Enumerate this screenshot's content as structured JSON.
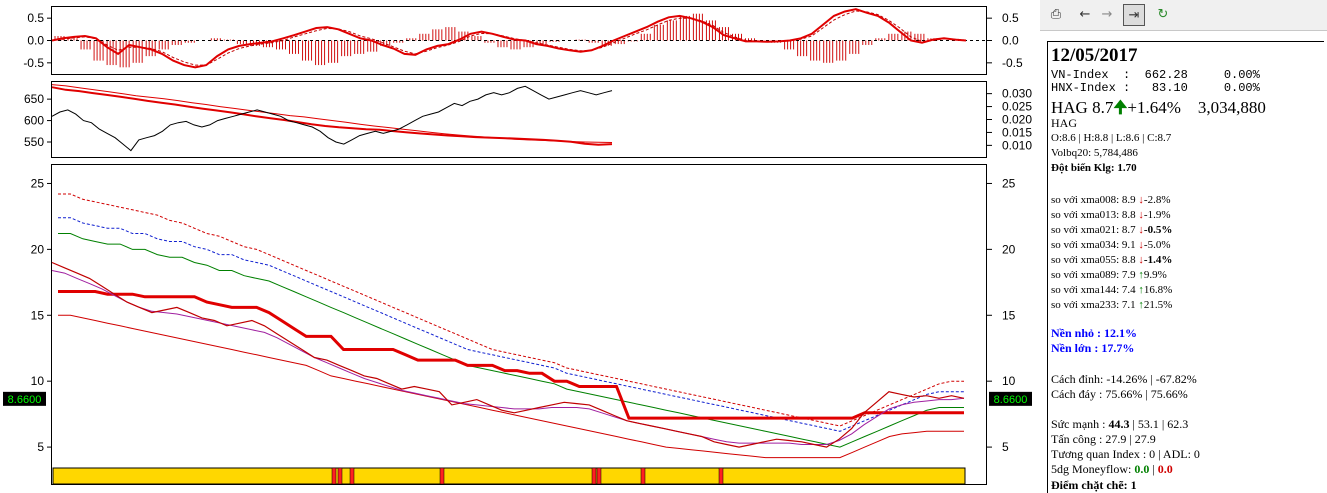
{
  "chart_data": [
    {
      "type": "bar",
      "panel": "oscillator",
      "ylim": [
        -0.75,
        0.75
      ],
      "y_ticks": [
        "0.5",
        "0.0",
        "-0.5"
      ],
      "baseline": 0.0,
      "series": [
        {
          "values": [
            0.1,
            0.05,
            -0.2,
            -0.45,
            -0.55,
            -0.6,
            -0.5,
            -0.35,
            -0.2,
            -0.1,
            -0.05,
            0.0,
            0.05,
            0.02,
            -0.08,
            -0.12,
            -0.15,
            -0.2,
            -0.3,
            -0.45,
            -0.55,
            -0.5,
            -0.35,
            -0.3,
            -0.25,
            -0.12,
            -0.05,
            0.05,
            0.15,
            0.25,
            0.3,
            0.2,
            0.1,
            -0.05,
            -0.15,
            -0.2,
            -0.15,
            -0.08,
            -0.03,
            0.0,
            0.02,
            -0.05,
            -0.12,
            -0.08,
            -0.02,
            0.15,
            0.35,
            0.45,
            0.55,
            0.6,
            0.45,
            0.3,
            0.15,
            0.05,
            0.0,
            -0.05,
            -0.2,
            -0.35,
            -0.45,
            -0.5,
            -0.45,
            -0.3,
            -0.1,
            0.05,
            0.15,
            0.2,
            0.15,
            0.05,
            0.0,
            0.02
          ]
        },
        {
          "values": [
            0.0,
            0.05,
            0.08,
            0.1,
            0.05,
            -0.15,
            -0.3,
            -0.1,
            -0.15,
            -0.2,
            -0.3,
            -0.45,
            -0.55,
            -0.6,
            -0.55,
            -0.35,
            -0.2,
            -0.12,
            -0.08,
            -0.05,
            -0.02,
            0.05,
            0.12,
            0.2,
            0.28,
            0.3,
            0.25,
            0.15,
            0.05,
            0.0,
            -0.1,
            -0.18,
            -0.3,
            -0.32,
            -0.2,
            -0.12,
            -0.08,
            0.02,
            0.15,
            0.2,
            0.15,
            0.08,
            0.02,
            0.0,
            -0.08,
            -0.12,
            -0.18,
            -0.22,
            -0.25,
            -0.22,
            -0.12,
            0.0,
            0.1,
            0.2,
            0.3,
            0.42,
            0.52,
            0.55,
            0.5,
            0.42,
            0.3,
            0.12,
            0.05,
            -0.02,
            -0.02,
            -0.03,
            -0.02,
            0.0,
            0.05,
            0.15,
            0.35,
            0.55,
            0.65,
            0.7,
            0.62,
            0.55,
            0.4,
            0.2,
            0.0,
            -0.05,
            0.02,
            0.05,
            0.02,
            0.0
          ]
        },
        {
          "values": [
            0.0,
            0.03,
            0.06,
            0.08,
            0.04,
            -0.1,
            -0.22,
            -0.15,
            -0.15,
            -0.18,
            -0.25,
            -0.38,
            -0.48,
            -0.55,
            -0.55,
            -0.42,
            -0.28,
            -0.18,
            -0.12,
            -0.08,
            -0.05,
            0.0,
            0.08,
            0.15,
            0.22,
            0.27,
            0.26,
            0.2,
            0.1,
            0.04,
            -0.05,
            -0.14,
            -0.24,
            -0.3,
            -0.24,
            -0.16,
            -0.1,
            -0.02,
            0.1,
            0.16,
            0.15,
            0.1,
            0.04,
            0.0,
            -0.05,
            -0.1,
            -0.15,
            -0.2,
            -0.23,
            -0.22,
            -0.15,
            -0.05,
            0.05,
            0.15,
            0.24,
            0.35,
            0.45,
            0.5,
            0.5,
            0.44,
            0.34,
            0.18,
            0.08,
            0.0,
            -0.02,
            -0.03,
            -0.02,
            -0.01,
            0.03,
            0.1,
            0.28,
            0.46,
            0.58,
            0.66,
            0.64,
            0.58,
            0.45,
            0.28,
            0.08,
            -0.02,
            0.0,
            0.04,
            0.03,
            0.01
          ]
        }
      ]
    },
    {
      "type": "line",
      "panel": "index-comparison",
      "y_ticks_left": [
        "650",
        "600",
        "550"
      ],
      "ylim_left": [
        515,
        690
      ],
      "y_ticks_right": [
        "0.030",
        "0.025",
        "0.020",
        "0.015",
        "0.010"
      ],
      "ylim_right": [
        0.0055,
        0.0345
      ],
      "series": [
        {
          "axis": "left",
          "values": [
            610,
            620,
            625,
            615,
            600,
            595,
            580,
            570,
            560,
            545,
            530,
            555,
            560,
            565,
            575,
            590,
            595,
            598,
            590,
            585,
            590,
            600,
            605,
            610,
            615,
            620,
            625,
            620,
            615,
            610,
            600,
            595,
            590,
            585,
            575,
            560,
            550,
            545,
            555,
            565,
            570,
            575,
            570,
            575,
            580,
            590,
            600,
            610,
            615,
            620,
            630,
            640,
            635,
            645,
            650,
            660,
            665,
            660,
            665,
            675,
            680,
            670,
            660,
            650,
            655,
            660,
            665,
            670,
            665,
            660,
            665,
            670
          ]
        },
        {
          "axis": "right",
          "values": [
            0.0325,
            0.0315,
            0.031,
            0.0302,
            0.0295,
            0.0288,
            0.028,
            0.0272,
            0.0265,
            0.0258,
            0.025,
            0.0242,
            0.0235,
            0.0228,
            0.022,
            0.0212,
            0.0205,
            0.0198,
            0.019,
            0.0182,
            0.0175,
            0.017,
            0.0166,
            0.0162,
            0.016,
            0.0155,
            0.015,
            0.0146,
            0.0142,
            0.0138,
            0.0135,
            0.0132,
            0.013,
            0.0128,
            0.0126,
            0.0124,
            0.0121,
            0.0118,
            0.0114,
            0.0106,
            0.0102,
            0.0105
          ]
        },
        {
          "axis": "right",
          "values": [
            0.0335,
            0.033,
            0.0322,
            0.0315,
            0.0308,
            0.03,
            0.0292,
            0.0286,
            0.028,
            0.0273,
            0.0265,
            0.0258,
            0.025,
            0.0243,
            0.0236,
            0.0229,
            0.0222,
            0.0215,
            0.021,
            0.0203,
            0.0196,
            0.0189,
            0.0182,
            0.0175,
            0.0169,
            0.0163,
            0.0157,
            0.0151,
            0.0145,
            0.014,
            0.0136,
            0.0132,
            0.0128,
            0.0124,
            0.0121,
            0.0119,
            0.0117,
            0.0115,
            0.0113,
            0.0112,
            0.0111
          ]
        }
      ]
    },
    {
      "type": "line",
      "panel": "price",
      "y_ticks": [
        "25",
        "20",
        "15",
        "10",
        "5"
      ],
      "ylim": [
        2.2,
        26.4
      ],
      "last_price_label": "8.6600",
      "last_price": 8.66,
      "series": [
        {
          "values": [
            19.0,
            18.6,
            18.2,
            17.8,
            17.2,
            16.6,
            16.0,
            15.6,
            15.2,
            15.4,
            15.6,
            15.2,
            14.8,
            14.6,
            14.2,
            14.4,
            14.6,
            14.2,
            13.6,
            13.0,
            12.4,
            11.8,
            11.6,
            11.2,
            10.8,
            10.4,
            10.2,
            9.8,
            9.4,
            9.6,
            9.4,
            9.2,
            8.2,
            8.4,
            8.6,
            8.2,
            7.8,
            7.6,
            7.8,
            8.0,
            8.2,
            8.4,
            8.3,
            8.2,
            7.8,
            7.4,
            7.0,
            6.8,
            6.6,
            6.4,
            6.2,
            6.0,
            5.8,
            5.4,
            5.2,
            5.0,
            5.2,
            5.4,
            5.6,
            5.5,
            5.4,
            5.2,
            5.0,
            5.6,
            6.4,
            7.6,
            8.4,
            9.2,
            9.0,
            8.8,
            8.9,
            8.7,
            8.9,
            8.7
          ]
        },
        {
          "values": [
            18.4,
            18.2,
            17.8,
            17.4,
            17.0,
            16.5,
            16.0,
            15.6,
            15.3,
            15.2,
            15.1,
            14.9,
            14.7,
            14.5,
            14.3,
            14.1,
            13.9,
            13.7,
            13.3,
            12.8,
            12.3,
            11.8,
            11.4,
            11.0,
            10.6,
            10.2,
            9.9,
            9.6,
            9.3,
            9.1,
            8.9,
            8.7,
            8.5,
            8.3,
            8.2,
            8.1,
            8.0,
            7.9,
            7.9,
            7.9,
            8.0,
            8.0,
            8.0,
            7.9,
            7.6,
            7.3,
            7.0,
            6.8,
            6.6,
            6.4,
            6.2,
            6.0,
            5.8,
            5.6,
            5.4,
            5.3,
            5.3,
            5.3,
            5.3,
            5.3,
            5.2,
            5.2,
            5.2,
            5.5,
            6.0,
            6.7,
            7.3,
            7.9,
            8.2,
            8.4,
            8.5,
            8.6,
            8.6,
            8.7
          ]
        },
        {
          "values": [
            16.8,
            16.8,
            16.8,
            16.8,
            16.6,
            16.6,
            16.6,
            16.4,
            16.4,
            16.4,
            16.4,
            16.4,
            16.0,
            15.8,
            15.6,
            15.6,
            15.6,
            15.2,
            14.6,
            14.0,
            13.4,
            13.4,
            13.4,
            12.4,
            12.4,
            12.4,
            12.4,
            12.4,
            12.0,
            11.6,
            11.6,
            11.6,
            11.6,
            11.2,
            11.2,
            11.2,
            10.8,
            10.8,
            10.6,
            10.6,
            10.0,
            10.0,
            9.6,
            9.6,
            9.6,
            9.6,
            7.2,
            7.2,
            7.2,
            7.2,
            7.2,
            7.2,
            7.2,
            7.2,
            7.2,
            7.2,
            7.2,
            7.2,
            7.2,
            7.2,
            7.2,
            7.2,
            7.2,
            7.2,
            7.2,
            7.6,
            7.6,
            7.6,
            7.6,
            7.6,
            7.6,
            7.6,
            7.6,
            7.6
          ]
        },
        {
          "values": [
            15.0,
            15.0,
            14.8,
            14.6,
            14.4,
            14.2,
            14.0,
            13.8,
            13.6,
            13.4,
            13.2,
            13.0,
            12.8,
            12.6,
            12.4,
            12.2,
            12.0,
            11.8,
            11.6,
            11.4,
            11.2,
            10.8,
            10.4,
            10.2,
            10.0,
            9.8,
            9.6,
            9.4,
            9.2,
            9.0,
            8.8,
            8.6,
            8.4,
            8.2,
            8.0,
            7.8,
            7.6,
            7.4,
            7.2,
            7.0,
            6.8,
            6.6,
            6.4,
            6.2,
            6.0,
            5.8,
            5.6,
            5.4,
            5.2,
            5.0,
            4.9,
            4.8,
            4.7,
            4.6,
            4.5,
            4.4,
            4.3,
            4.2,
            4.2,
            4.2,
            4.2,
            4.2,
            4.2,
            4.2,
            4.6,
            5.0,
            5.4,
            5.8,
            6.0,
            6.1,
            6.2,
            6.2,
            6.2,
            6.2
          ]
        },
        {
          "values": [
            22.4,
            22.4,
            22.0,
            21.8,
            21.6,
            21.6,
            21.2,
            21.2,
            20.8,
            20.6,
            20.6,
            20.2,
            20.0,
            19.6,
            19.6,
            19.2,
            19.0,
            18.8,
            18.4,
            18.0,
            17.6,
            17.2,
            16.8,
            16.4,
            16.0,
            15.6,
            15.2,
            14.8,
            14.4,
            14.0,
            13.6,
            13.2,
            12.8,
            12.4,
            12.2,
            12.0,
            11.8,
            11.6,
            11.4,
            11.2,
            11.0,
            10.6,
            10.4,
            10.2,
            10.0,
            9.8,
            9.6,
            9.4,
            9.2,
            9.0,
            8.8,
            8.6,
            8.4,
            8.2,
            8.0,
            7.8,
            7.6,
            7.4,
            7.2,
            7.0,
            6.8,
            6.6,
            6.4,
            6.2,
            6.6,
            7.0,
            7.4,
            7.8,
            8.2,
            8.6,
            9.0,
            9.2,
            9.2,
            9.2
          ]
        },
        {
          "values": [
            24.2,
            24.2,
            23.8,
            23.6,
            23.4,
            23.2,
            23.0,
            22.8,
            22.6,
            22.2,
            22.0,
            21.6,
            21.2,
            21.0,
            20.6,
            20.2,
            20.0,
            19.6,
            19.2,
            18.8,
            18.4,
            18.0,
            17.6,
            17.2,
            16.8,
            16.4,
            16.0,
            15.6,
            15.2,
            14.8,
            14.4,
            14.0,
            13.6,
            13.2,
            12.8,
            12.4,
            12.2,
            12.0,
            11.8,
            11.6,
            11.4,
            11.0,
            10.8,
            10.6,
            10.4,
            10.2,
            10.0,
            9.8,
            9.6,
            9.4,
            9.2,
            9.0,
            8.8,
            8.6,
            8.4,
            8.2,
            8.0,
            7.8,
            7.6,
            7.4,
            7.2,
            7.0,
            6.8,
            6.6,
            7.0,
            7.4,
            7.8,
            8.2,
            8.6,
            9.0,
            9.4,
            9.8,
            10.0,
            10.0
          ]
        }
      ],
      "color_strip": {
        "base": "#ffd700",
        "marks": "#ff2020"
      }
    }
  ],
  "colors": {
    "up": "#00a000",
    "down": "#e00000",
    "blue_title": "#0000ff",
    "grid": "#808080"
  },
  "toolbar": {
    "icons": [
      "printer-icon",
      "back-arrow-icon",
      "forward-arrow-icon",
      "jump-end-icon",
      "refresh-icon"
    ]
  },
  "info": {
    "date": "12/05/2017",
    "vnindex": "VN-Index  :  662.28     0.00%",
    "hnxindex": "HNX-Index :   83.10     0.00%",
    "quote_symbol": "HAG",
    "quote_price": "8.7",
    "quote_change": "+1.64%",
    "quote_volume": "3,034,880",
    "symbol": "HAG",
    "ohlc": "O:8.6 | H:8.8 | L:8.6 | C:8.7",
    "volbq": "Volbq20: 5,784,486",
    "dotbien_label": "Đột biến Klg:",
    "dotbien_value": "1.70",
    "xma": [
      {
        "label": "so với xma008:",
        "value": "8.9",
        "dir": "down",
        "pct": "-2.8%",
        "bold": false
      },
      {
        "label": "so với xma013:",
        "value": "8.8",
        "dir": "down",
        "pct": "-1.9%",
        "bold": false
      },
      {
        "label": "so với xma021:",
        "value": "8.7",
        "dir": "down",
        "pct": "-0.5%",
        "bold": true
      },
      {
        "label": "so với xma034:",
        "value": "9.1",
        "dir": "down",
        "pct": "-5.0%",
        "bold": false
      },
      {
        "label": "so với xma055:",
        "value": "8.8",
        "dir": "down",
        "pct": "-1.4%",
        "bold": true
      },
      {
        "label": "so với xma089:",
        "value": "7.9",
        "dir": "up",
        "pct": "9.9%",
        "bold": false
      },
      {
        "label": "so với xma144:",
        "value": "7.4",
        "dir": "up",
        "pct": "16.8%",
        "bold": false
      },
      {
        "label": "so với xma233:",
        "value": "7.1",
        "dir": "up",
        "pct": "21.5%",
        "bold": false
      }
    ],
    "nen_nho": "Nền nhỏ : 12.1%",
    "nen_lon": "Nền lớn : 17.7%",
    "cach_dinh": "Cách đỉnh: -14.26% | -67.82%",
    "cach_day": "Cách đáy : 75.66% | 75.66%",
    "suc_manh_label": "Sức mạnh :",
    "suc_manh_bold": "44.3",
    "suc_manh_rest": "| 53.1 | 62.3",
    "tan_cong": "Tấn công : 27.9 | 27.9",
    "tuong_quan": "Tương quan Index : 0 | ADL: 0",
    "moneyflow_label": "5dg Moneyflow:",
    "moneyflow_a": "0.0",
    "moneyflow_sep": "|",
    "moneyflow_b": "0.0",
    "diem_label": "Điểm chặt chẽ:",
    "diem_value": "1"
  }
}
